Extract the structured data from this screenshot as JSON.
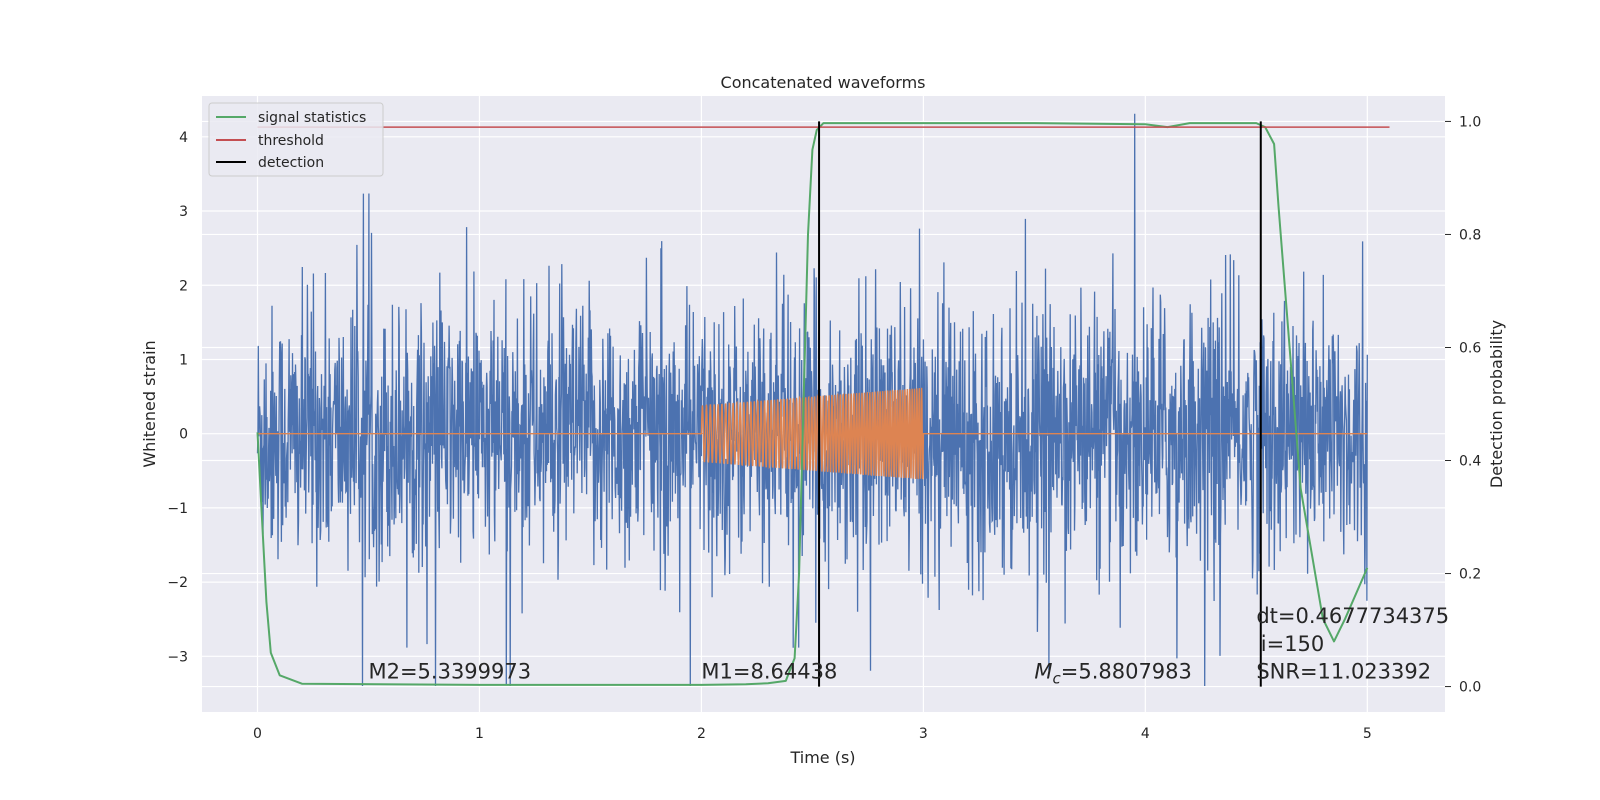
{
  "chart_data": {
    "type": "line",
    "title": "Concatenated waveforms",
    "xlabel": "Time (s)",
    "ylabel": "Whitened strain",
    "y2label": "Detection probability",
    "xlim": [
      -0.25,
      5.35
    ],
    "ylim": [
      -3.75,
      4.55
    ],
    "y2lim": [
      -0.045,
      1.045
    ],
    "xticks": [
      0,
      1,
      2,
      3,
      4,
      5
    ],
    "yticks": [
      -3,
      -2,
      -1,
      0,
      1,
      2,
      3,
      4
    ],
    "y2ticks": [
      0.0,
      0.2,
      0.4,
      0.6,
      0.8,
      1.0
    ],
    "grid": true,
    "legend_position": "upper-left",
    "legend": [
      {
        "label": "signal statistics",
        "color": "#55a868"
      },
      {
        "label": "threshold",
        "color": "#c44e52"
      },
      {
        "label": "detection",
        "color": "#000000"
      }
    ],
    "series": [
      {
        "name": "",
        "kind": "whitened-noise",
        "color": "#4c72b0",
        "x_range": [
          0,
          5
        ],
        "typical_amplitude": 1.5,
        "peak_range": [
          -3.4,
          4.4
        ]
      },
      {
        "name": "",
        "kind": "injected-chirp",
        "color": "#dd8452",
        "x_range": [
          0,
          5
        ],
        "chirp_start": 2.0,
        "chirp_end": 3.0,
        "amplitude_start": 0.38,
        "amplitude_end": 0.62
      },
      {
        "name": "signal statistics",
        "axis": "right",
        "color": "#55a868",
        "x": [
          0,
          0.02,
          0.04,
          0.06,
          0.1,
          0.2,
          1.0,
          2.0,
          2.2,
          2.3,
          2.38,
          2.42,
          2.44,
          2.46,
          2.48,
          2.5,
          2.52,
          2.55,
          2.6,
          3.5,
          4.0,
          4.1,
          4.2,
          4.5,
          4.54,
          4.58,
          4.6,
          4.65,
          4.7,
          4.8,
          4.85,
          4.9,
          5.0
        ],
        "y": [
          0.45,
          0.3,
          0.15,
          0.06,
          0.02,
          0.005,
          0.003,
          0.003,
          0.004,
          0.006,
          0.01,
          0.05,
          0.2,
          0.5,
          0.8,
          0.95,
          0.985,
          0.997,
          0.997,
          0.997,
          0.995,
          0.99,
          0.997,
          0.997,
          0.99,
          0.96,
          0.85,
          0.6,
          0.35,
          0.12,
          0.08,
          0.12,
          0.21
        ]
      },
      {
        "name": "threshold",
        "axis": "right",
        "color": "#c44e52",
        "x": [
          0,
          5.1
        ],
        "y": [
          0.99,
          0.99
        ]
      },
      {
        "name": "detection",
        "axis": "right",
        "color": "#000000",
        "x": [
          2.53,
          4.52
        ],
        "y_range": [
          0.0,
          1.0
        ]
      }
    ],
    "annotations": [
      {
        "text": "M2=5.3399973",
        "x": 0.5,
        "y": -3.3
      },
      {
        "text": "M1=8.64438",
        "x": 2.0,
        "y": -3.3
      },
      {
        "text": "=5.8807983",
        "prefix_base": "M",
        "prefix_sub": "c",
        "x": 3.5,
        "y": -3.3
      },
      {
        "text": "dt=0.4677734375",
        "x": 4.5,
        "y": -2.55
      },
      {
        "text": "i=150",
        "x": 4.52,
        "y": -2.93
      },
      {
        "text": "SNR=11.023392",
        "x": 4.5,
        "y": -3.3
      }
    ]
  }
}
